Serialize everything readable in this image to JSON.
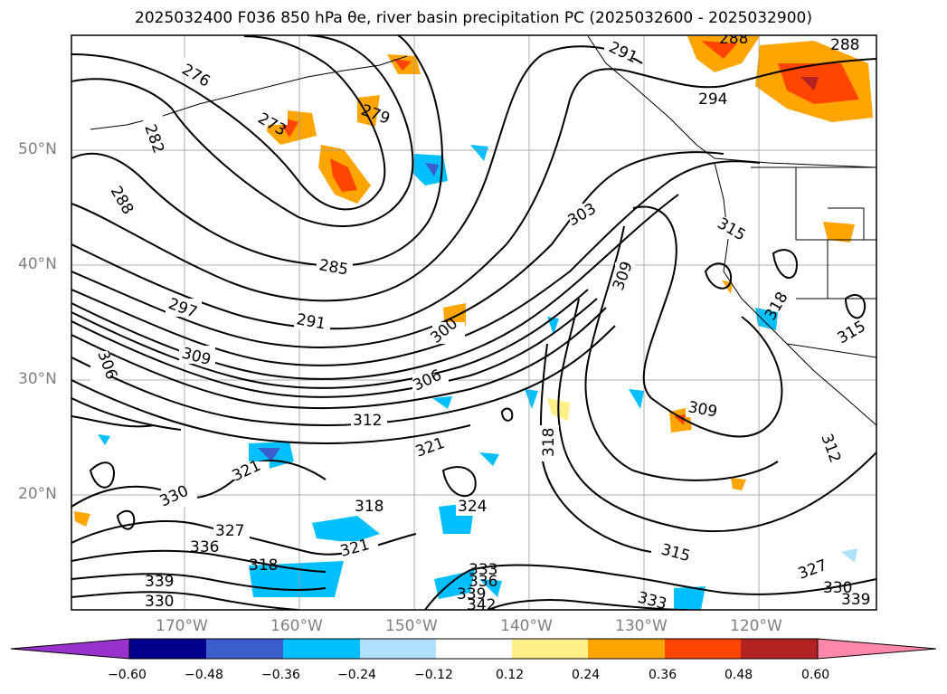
{
  "title": "2025032400 F036 850 hPa θe, river basin precipitation PC (2025032600 - 2025032900)",
  "lat_labels": [
    "50°N",
    "40°N",
    "30°N",
    "20°N"
  ],
  "lon_labels": [
    "170°W",
    "160°W",
    "150°W",
    "140°W",
    "130°W",
    "120°W"
  ],
  "contour_labels": [
    "276",
    "273",
    "279",
    "282",
    "288",
    "285",
    "291",
    "291",
    "294",
    "288",
    "288",
    "297",
    "300",
    "303",
    "306",
    "309",
    "309",
    "309",
    "312",
    "312",
    "315",
    "315",
    "315",
    "318",
    "318",
    "318",
    "318",
    "321",
    "321",
    "321",
    "324",
    "327",
    "327",
    "330",
    "330",
    "330",
    "333",
    "333",
    "336",
    "336",
    "339",
    "339",
    "339",
    "342",
    "306"
  ],
  "colorbar": {
    "ticks": [
      "−0.60",
      "−0.48",
      "−0.36",
      "−0.24",
      "−0.12",
      "0.12",
      "0.24",
      "0.36",
      "0.48",
      "0.60"
    ],
    "colors": [
      "#9932cc",
      "#00008b",
      "#3a5fcd",
      "#00bfff",
      "#b0e2ff",
      "#ffffff",
      "#fff08a",
      "#ffa500",
      "#ff4500",
      "#b22222",
      "#ff88aa"
    ]
  }
}
